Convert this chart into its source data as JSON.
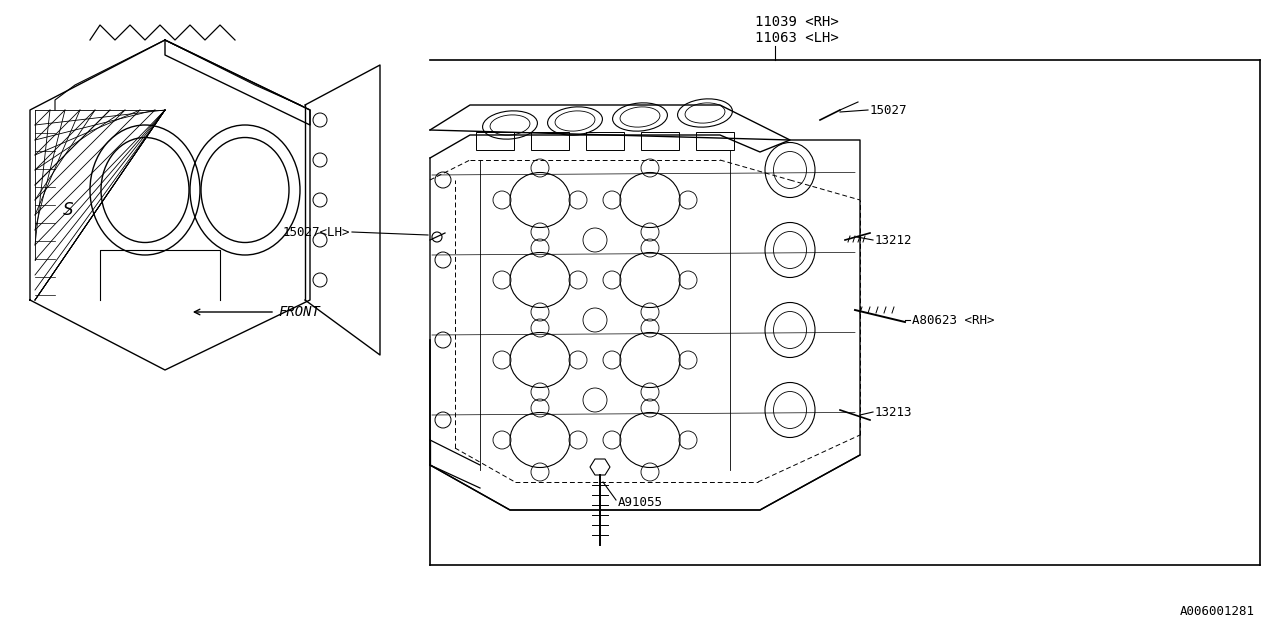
{
  "bg_color": "#ffffff",
  "line_color": "#000000",
  "part_number_bottom_right": "A006001281",
  "labels": {
    "11039_11063": "11039 <RH>\n11063 <LH>",
    "15027_LH": "15027<LH>",
    "15027": "15027",
    "13212": "13212",
    "A80623": "A80623 <RH>",
    "13213": "13213",
    "A91055": "A91055",
    "FRONT": "FRONT"
  },
  "font_size_labels": 9
}
